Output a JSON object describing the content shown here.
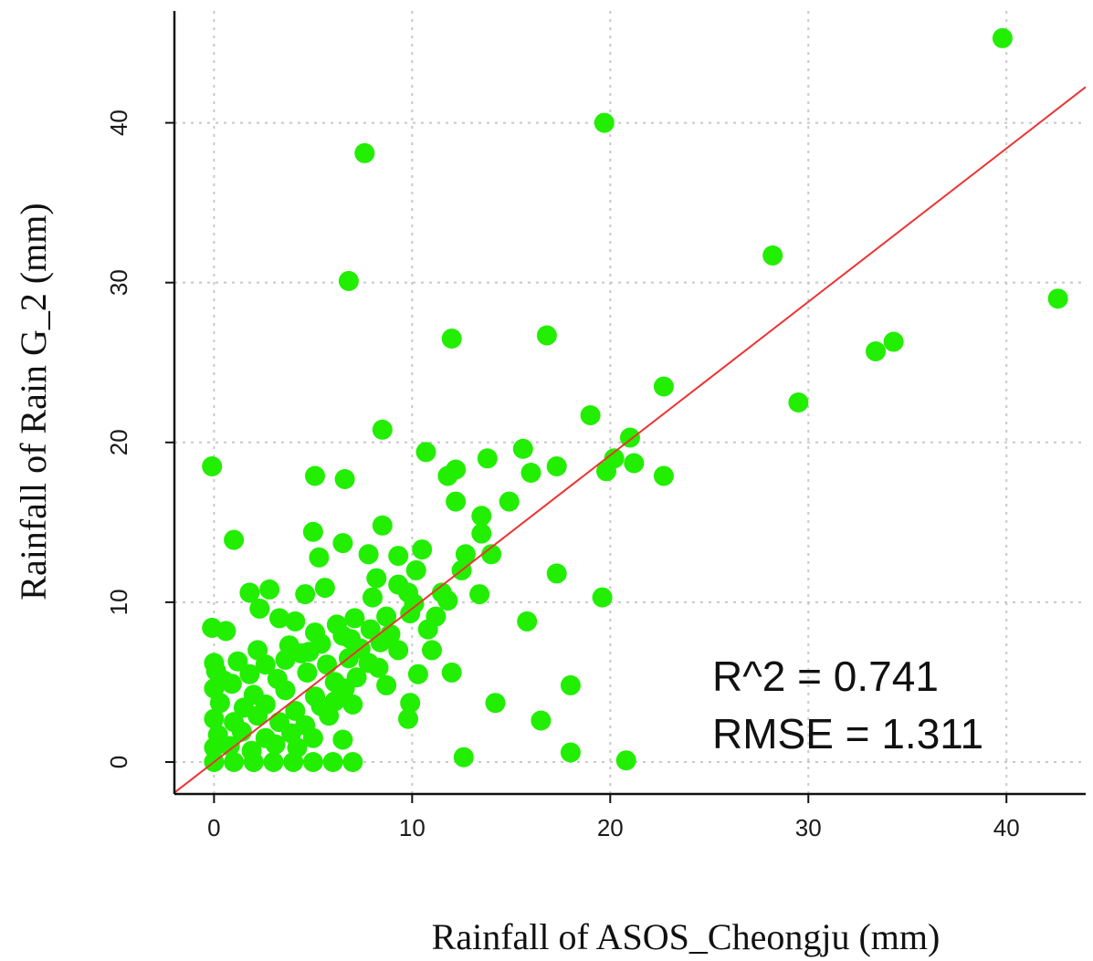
{
  "chart_data": {
    "type": "scatter",
    "xlabel": "Rainfall of ASOS_Cheongju (mm)",
    "ylabel": "Rainfall of Rain G_2 (mm)",
    "xlim": [
      -2,
      44
    ],
    "ylim": [
      -2,
      47
    ],
    "xticks": [
      0,
      10,
      20,
      30,
      40
    ],
    "yticks": [
      0,
      10,
      20,
      30,
      40
    ],
    "x_tick_labels": [
      "0",
      "10",
      "20",
      "30",
      "40"
    ],
    "y_tick_labels": [
      "0",
      "10",
      "20",
      "30",
      "40"
    ],
    "grid": true,
    "point_color": "#22ee00",
    "line_color": "#ee3333",
    "fit_line": {
      "slope": 0.96,
      "intercept": 0.0
    },
    "stats": {
      "r2": "R^2 = 0.741",
      "rmse": "RMSE = 1.311"
    },
    "series": [
      {
        "points": [
          [
            39.8,
            45.3
          ],
          [
            19.7,
            40.0
          ],
          [
            7.6,
            38.1
          ],
          [
            6.8,
            30.1
          ],
          [
            28.2,
            31.7
          ],
          [
            42.6,
            29.0
          ],
          [
            33.4,
            25.7
          ],
          [
            34.3,
            26.3
          ],
          [
            29.5,
            22.5
          ],
          [
            12.0,
            26.5
          ],
          [
            16.8,
            26.7
          ],
          [
            22.7,
            23.5
          ],
          [
            19.0,
            21.7
          ],
          [
            8.5,
            20.8
          ],
          [
            -0.1,
            18.5
          ],
          [
            5.1,
            17.9
          ],
          [
            6.6,
            17.7
          ],
          [
            10.7,
            19.4
          ],
          [
            11.8,
            17.9
          ],
          [
            12.2,
            18.3
          ],
          [
            13.8,
            19.0
          ],
          [
            15.6,
            19.6
          ],
          [
            16.0,
            18.1
          ],
          [
            17.3,
            18.5
          ],
          [
            19.8,
            18.2
          ],
          [
            20.2,
            19.0
          ],
          [
            21.0,
            20.3
          ],
          [
            21.2,
            18.7
          ],
          [
            22.7,
            17.9
          ],
          [
            12.2,
            16.3
          ],
          [
            14.9,
            16.3
          ],
          [
            13.5,
            15.4
          ],
          [
            5.0,
            14.4
          ],
          [
            8.5,
            14.8
          ],
          [
            1.0,
            13.9
          ],
          [
            6.5,
            13.7
          ],
          [
            5.3,
            12.8
          ],
          [
            7.8,
            13.0
          ],
          [
            9.3,
            12.9
          ],
          [
            10.5,
            13.3
          ],
          [
            12.7,
            13.0
          ],
          [
            13.5,
            14.3
          ],
          [
            14.0,
            13.0
          ],
          [
            17.3,
            11.8
          ],
          [
            8.2,
            11.5
          ],
          [
            9.3,
            11.1
          ],
          [
            10.2,
            12.0
          ],
          [
            12.5,
            12.0
          ],
          [
            1.8,
            10.6
          ],
          [
            2.8,
            10.8
          ],
          [
            4.6,
            10.5
          ],
          [
            5.6,
            10.9
          ],
          [
            8.0,
            10.3
          ],
          [
            9.8,
            10.6
          ],
          [
            13.4,
            10.5
          ],
          [
            19.6,
            10.3
          ],
          [
            -0.1,
            8.4
          ],
          [
            0.6,
            8.2
          ],
          [
            2.3,
            9.6
          ],
          [
            3.3,
            9.0
          ],
          [
            4.1,
            8.8
          ],
          [
            5.1,
            8.1
          ],
          [
            6.2,
            8.6
          ],
          [
            7.1,
            9.0
          ],
          [
            8.7,
            9.1
          ],
          [
            9.9,
            9.3
          ],
          [
            11.2,
            9.1
          ],
          [
            11.8,
            10.1
          ],
          [
            15.8,
            8.8
          ],
          [
            10.8,
            8.3
          ],
          [
            2.2,
            7.0
          ],
          [
            3.8,
            7.3
          ],
          [
            5.4,
            7.4
          ],
          [
            6.5,
            7.9
          ],
          [
            7.4,
            7.1
          ],
          [
            8.4,
            7.5
          ],
          [
            9.3,
            7.0
          ],
          [
            11.0,
            7.0
          ],
          [
            1.2,
            6.3
          ],
          [
            2.6,
            6.1
          ],
          [
            3.6,
            6.4
          ],
          [
            4.4,
            6.8
          ],
          [
            5.7,
            6.1
          ],
          [
            6.8,
            6.5
          ],
          [
            7.8,
            6.2
          ],
          [
            0.1,
            5.7
          ],
          [
            1.8,
            5.5
          ],
          [
            3.2,
            5.2
          ],
          [
            4.7,
            5.6
          ],
          [
            6.1,
            5.0
          ],
          [
            7.2,
            5.3
          ],
          [
            8.3,
            5.9
          ],
          [
            12.0,
            5.6
          ],
          [
            10.3,
            5.5
          ],
          [
            0.0,
            4.6
          ],
          [
            0.9,
            4.9
          ],
          [
            2.0,
            4.2
          ],
          [
            3.6,
            4.5
          ],
          [
            5.1,
            4.1
          ],
          [
            6.6,
            4.6
          ],
          [
            8.7,
            4.8
          ],
          [
            18.0,
            4.8
          ],
          [
            0.3,
            3.7
          ],
          [
            1.5,
            3.4
          ],
          [
            2.6,
            3.6
          ],
          [
            4.1,
            3.2
          ],
          [
            5.4,
            3.5
          ],
          [
            6.1,
            3.8
          ],
          [
            7.0,
            3.6
          ],
          [
            9.9,
            3.7
          ],
          [
            14.2,
            3.7
          ],
          [
            0.0,
            2.7
          ],
          [
            1.0,
            2.5
          ],
          [
            2.2,
            2.9
          ],
          [
            3.3,
            2.5
          ],
          [
            4.6,
            2.3
          ],
          [
            5.8,
            2.9
          ],
          [
            16.5,
            2.6
          ],
          [
            0.2,
            1.7
          ],
          [
            1.4,
            1.9
          ],
          [
            2.6,
            1.5
          ],
          [
            3.9,
            1.8
          ],
          [
            5.0,
            1.5
          ],
          [
            9.8,
            2.7
          ],
          [
            0.0,
            0.9
          ],
          [
            0.8,
            1.0
          ],
          [
            1.9,
            0.7
          ],
          [
            3.1,
            1.1
          ],
          [
            4.2,
            0.9
          ],
          [
            6.5,
            1.4
          ],
          [
            0.0,
            0.0
          ],
          [
            1.0,
            0.0
          ],
          [
            2.0,
            0.0
          ],
          [
            3.0,
            0.0
          ],
          [
            4.0,
            0.0
          ],
          [
            5.0,
            0.0
          ],
          [
            6.0,
            0.0
          ],
          [
            7.0,
            0.0
          ],
          [
            12.6,
            0.3
          ],
          [
            18.0,
            0.6
          ],
          [
            20.8,
            0.1
          ],
          [
            0.5,
            5.1
          ],
          [
            0.0,
            6.2
          ],
          [
            4.8,
            6.9
          ],
          [
            6.9,
            7.7
          ],
          [
            7.9,
            8.3
          ],
          [
            8.9,
            8.0
          ],
          [
            10.1,
            9.9
          ],
          [
            11.5,
            10.6
          ]
        ]
      }
    ]
  }
}
